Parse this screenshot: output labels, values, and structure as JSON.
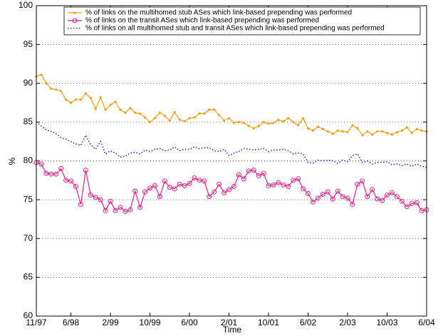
{
  "chart_data": {
    "type": "line",
    "xlabel": "Time",
    "ylabel": "%",
    "categories": [
      "11/97",
      null,
      null,
      null,
      null,
      null,
      null,
      "6/98",
      null,
      null,
      null,
      null,
      null,
      null,
      null,
      "2/99",
      null,
      null,
      null,
      null,
      null,
      null,
      null,
      "10/99",
      null,
      null,
      null,
      null,
      null,
      null,
      null,
      "6/00",
      null,
      null,
      null,
      null,
      null,
      null,
      null,
      "2/01",
      null,
      null,
      null,
      null,
      null,
      null,
      null,
      "10/01",
      null,
      null,
      null,
      null,
      null,
      null,
      null,
      "6/02",
      null,
      null,
      null,
      null,
      null,
      null,
      null,
      "2/03",
      null,
      null,
      null,
      null,
      null,
      null,
      null,
      "10/03",
      null,
      null,
      null,
      null,
      null,
      null,
      null,
      "6/04"
    ],
    "series": [
      {
        "name": "% of links on the multihomed stub ASes which link-based prepending was performed",
        "color": "#f39c12",
        "marker": "dot",
        "line_style": "solid",
        "values": [
          90.9,
          91.1,
          90,
          89.3,
          89.2,
          89,
          87.9,
          87.5,
          87.9,
          87.9,
          88.7,
          88.1,
          86.7,
          88.2,
          86.6,
          87.2,
          87.6,
          86.6,
          86.2,
          86.8,
          86.2,
          86.1,
          85.6,
          85.0,
          85.5,
          86.2,
          85.8,
          85.2,
          86.3,
          85.3,
          85.1,
          85.5,
          85.6,
          86.1,
          86.1,
          86.6,
          86.6,
          85.9,
          85.2,
          85.5,
          84.9,
          85.0,
          84.9,
          84.5,
          84.2,
          84.5,
          85.0,
          84.8,
          84.9,
          85.3,
          85.1,
          85.5,
          85.0,
          84.6,
          85.5,
          84.2,
          83.9,
          84.4,
          84.1,
          83.8,
          83.5,
          83.9,
          83.8,
          83.7,
          84.6,
          84.2,
          83.3,
          83.8,
          83.4,
          83.8,
          83.8,
          83.6,
          83.4,
          83.7,
          83.9,
          84.3,
          83.6,
          84.1,
          83.9,
          83.8
        ]
      },
      {
        "name": "% of links on the transit ASes which link-based prepending was performed",
        "color": "#e0218a",
        "marker": "circle",
        "line_style": "solid",
        "values": [
          79.8,
          79.6,
          78.4,
          78.3,
          78.3,
          79.0,
          77.5,
          77.4,
          76.7,
          74.4,
          78.8,
          75.6,
          75.3,
          75.0,
          73.6,
          74.8,
          73.6,
          74.0,
          73.5,
          73.7,
          76.1,
          74.0,
          76.0,
          76.5,
          76.8,
          75.4,
          77.4,
          76.6,
          76.4,
          77.0,
          76.8,
          77.1,
          77.8,
          77.5,
          77.4,
          75.4,
          76.0,
          77.0,
          75.9,
          76.3,
          76.7,
          78.2,
          77.7,
          78.7,
          78.8,
          78.1,
          78.4,
          76.8,
          76.9,
          77.2,
          76.9,
          76.7,
          77.5,
          77.7,
          76.4,
          75.8,
          74.7,
          75.2,
          75.7,
          76.0,
          75.1,
          76.1,
          75.4,
          75.2,
          74.4,
          77.0,
          77.4,
          75.4,
          76.3,
          75.1,
          74.9,
          75.6,
          75.9,
          75.4,
          74.8,
          74.1,
          74.5,
          74.6,
          73.6,
          73.7
        ]
      },
      {
        "name": "% of links on all multihomed stub and transit ASes which link-based prepending was performed",
        "color": "#2b2bd6",
        "marker": "none",
        "line_style": "dotted",
        "values": [
          85.0,
          84.5,
          84.0,
          83.8,
          83.5,
          83.0,
          82.8,
          82.5,
          82.2,
          82.0,
          83.3,
          82.1,
          81.5,
          82.5,
          80.9,
          81.3,
          81.0,
          80.5,
          80.6,
          81.0,
          81.1,
          80.9,
          81.4,
          81.2,
          81.5,
          81.6,
          81.3,
          81.4,
          81.8,
          81.3,
          81.5,
          81.5,
          81.8,
          81.6,
          81.7,
          81.7,
          81.3,
          81.2,
          81.5,
          80.7,
          81.0,
          81.2,
          81.6,
          81.5,
          81.4,
          81.5,
          81.6,
          81.2,
          81.4,
          81.4,
          81.5,
          81.3,
          80.9,
          81.0,
          80.9,
          79.8,
          79.7,
          80.1,
          80.0,
          80.1,
          80.0,
          79.7,
          80.1,
          79.9,
          80.7,
          80.9,
          79.8,
          80.0,
          79.6,
          79.8,
          79.8,
          79.9,
          79.5,
          79.6,
          79.4,
          79.6,
          79.3,
          79.6,
          79.3,
          79.2
        ]
      }
    ],
    "ylim": [
      60,
      100
    ],
    "yticks": [
      60,
      65,
      70,
      75,
      80,
      85,
      90,
      95,
      100
    ],
    "grid": true,
    "legend": "top"
  }
}
